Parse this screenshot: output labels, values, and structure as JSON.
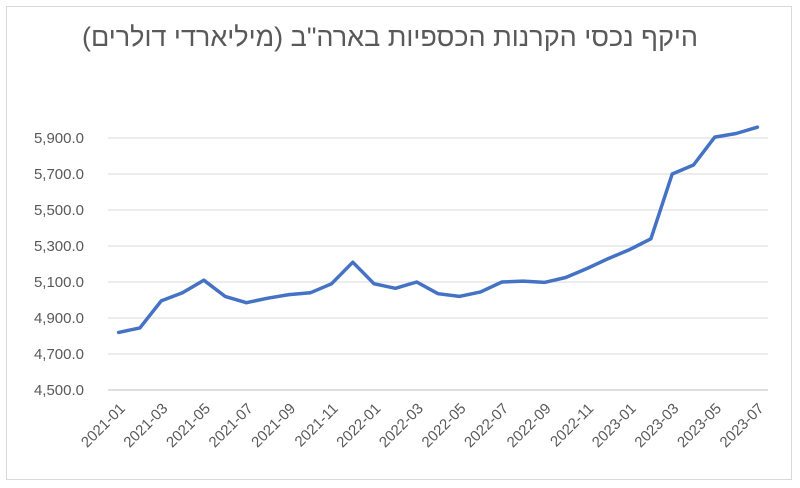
{
  "chart_data": {
    "type": "line",
    "title": "היקף נכסי הקרנות הכספיות בארה\"ב (מיליארדי דולרים)",
    "xlabel": "",
    "ylabel": "",
    "ylim": [
      4500,
      6000
    ],
    "y_ticks": [
      "4,500.0",
      "4,700.0",
      "4,900.0",
      "5,100.0",
      "5,300.0",
      "5,500.0",
      "5,700.0",
      "5,900.0"
    ],
    "y_tick_values": [
      4500,
      4700,
      4900,
      5100,
      5300,
      5500,
      5700,
      5900
    ],
    "x_tick_labels": [
      "2021-01",
      "2021-03",
      "2021-05",
      "2021-07",
      "2021-09",
      "2021-11",
      "2022-01",
      "2022-03",
      "2022-05",
      "2022-07",
      "2022-09",
      "2022-11",
      "2023-01",
      "2023-03",
      "2023-05",
      "2023-07"
    ],
    "grid": true,
    "legend": "none",
    "color": "#4472c4",
    "x": [
      "2021-01",
      "2021-02",
      "2021-03",
      "2021-04",
      "2021-05",
      "2021-06",
      "2021-07",
      "2021-08",
      "2021-09",
      "2021-10",
      "2021-11",
      "2021-12",
      "2022-01",
      "2022-02",
      "2022-03",
      "2022-04",
      "2022-05",
      "2022-06",
      "2022-07",
      "2022-08",
      "2022-09",
      "2022-10",
      "2022-11",
      "2022-12",
      "2023-01",
      "2023-02",
      "2023-03",
      "2023-04",
      "2023-05",
      "2023-06",
      "2023-07"
    ],
    "values": [
      4820,
      4845,
      4995,
      5040,
      5110,
      5020,
      4985,
      5010,
      5030,
      5040,
      5090,
      5210,
      5090,
      5065,
      5100,
      5035,
      5020,
      5045,
      5100,
      5105,
      5098,
      5125,
      5175,
      5230,
      5280,
      5340,
      5700,
      5750,
      5905,
      5925,
      5960
    ]
  }
}
